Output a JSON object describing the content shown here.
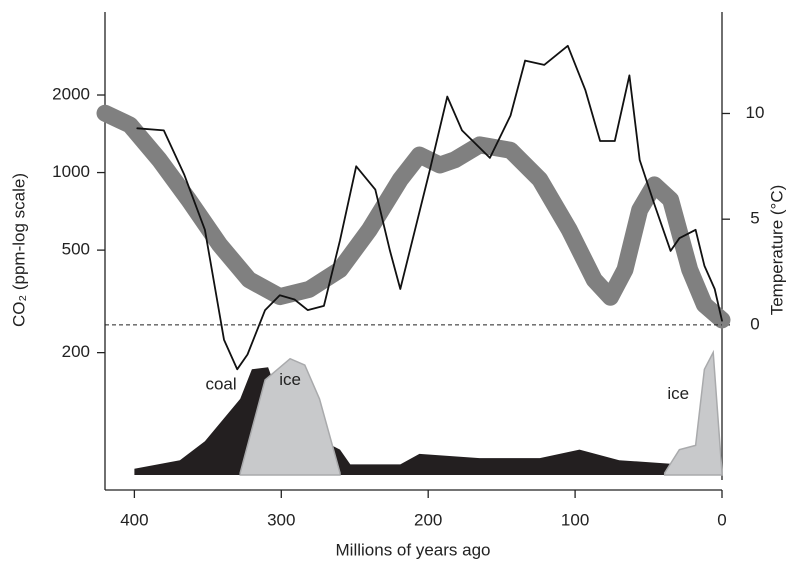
{
  "chart_data": {
    "type": "line",
    "xlabel": "Millions of years ago",
    "ylabel": "CO₂ (ppm-log scale)",
    "y2label": "Temperature (°C)",
    "xlim": [
      420,
      0
    ],
    "xticks": [
      400,
      300,
      200,
      100,
      0
    ],
    "ylim": [
      67,
      4200
    ],
    "yticks": [
      200,
      500,
      1000,
      2000
    ],
    "ylog": true,
    "y2lim": [
      -7.1,
      14.8
    ],
    "y2ticks": [
      0,
      5,
      10
    ],
    "y2_reference_line": 0,
    "series": [
      {
        "name": "coal",
        "style": "area",
        "axis": "y2",
        "color": "#231f20",
        "x": [
          400,
          369,
          352,
          328,
          320,
          309,
          294,
          274,
          260,
          253,
          219,
          206,
          165,
          124,
          97,
          70,
          29,
          0
        ],
        "values": [
          -6.8,
          -6.4,
          -5.5,
          -3.5,
          -2.1,
          -2.0,
          -4.9,
          -5.4,
          -5.9,
          -6.6,
          -6.6,
          -6.1,
          -6.3,
          -6.3,
          -5.9,
          -6.4,
          -6.6,
          -6.9
        ]
      },
      {
        "name": "ice",
        "style": "area",
        "axis": "y2",
        "color": "#c8c9cb",
        "x": [
          328,
          311,
          294,
          284,
          274,
          260
        ],
        "values": [
          -7.0,
          -2.6,
          -1.6,
          -1.9,
          -3.5,
          -7.0
        ]
      },
      {
        "name": "ice",
        "style": "area",
        "axis": "y2",
        "color": "#c8c9cb",
        "x": [
          39,
          29,
          18,
          12,
          6,
          0
        ],
        "values": [
          -7.0,
          -5.9,
          -5.7,
          -2.1,
          -1.3,
          -7.0
        ]
      },
      {
        "style": "thick",
        "color": "#808080",
        "x": [
          420,
          403,
          383,
          363,
          342,
          322,
          301,
          281,
          260,
          240,
          219,
          206,
          192,
          182,
          165,
          144,
          124,
          104,
          87,
          76,
          66,
          56,
          46,
          35,
          22,
          12,
          0
        ],
        "values": [
          1700,
          1530,
          1120,
          784,
          525,
          384,
          330,
          352,
          420,
          600,
          940,
          1170,
          1070,
          1120,
          1280,
          1220,
          940,
          600,
          384,
          328,
          420,
          716,
          896,
          784,
          420,
          307,
          268
        ]
      },
      {
        "style": "thin",
        "axis": "y2",
        "color": "#111111",
        "x": [
          398,
          380,
          366,
          352,
          345,
          339,
          330,
          323,
          311,
          301,
          291,
          282,
          271,
          260,
          249,
          236,
          226,
          219,
          209,
          199,
          187,
          177,
          158,
          144,
          134,
          121,
          105,
          93,
          83,
          73,
          63,
          56,
          46,
          35,
          29,
          18,
          12,
          5,
          0
        ],
        "values": [
          9.3,
          9.2,
          7.1,
          4.5,
          1.7,
          -0.7,
          -2.1,
          -1.4,
          0.7,
          1.4,
          1.2,
          0.7,
          0.9,
          4.0,
          7.5,
          6.4,
          3.5,
          1.7,
          4.5,
          7.3,
          10.8,
          9.2,
          7.9,
          9.9,
          12.5,
          12.3,
          13.2,
          11.1,
          8.7,
          8.7,
          11.8,
          7.8,
          5.7,
          3.5,
          4.1,
          4.5,
          2.8,
          1.7,
          0.2
        ]
      }
    ]
  }
}
